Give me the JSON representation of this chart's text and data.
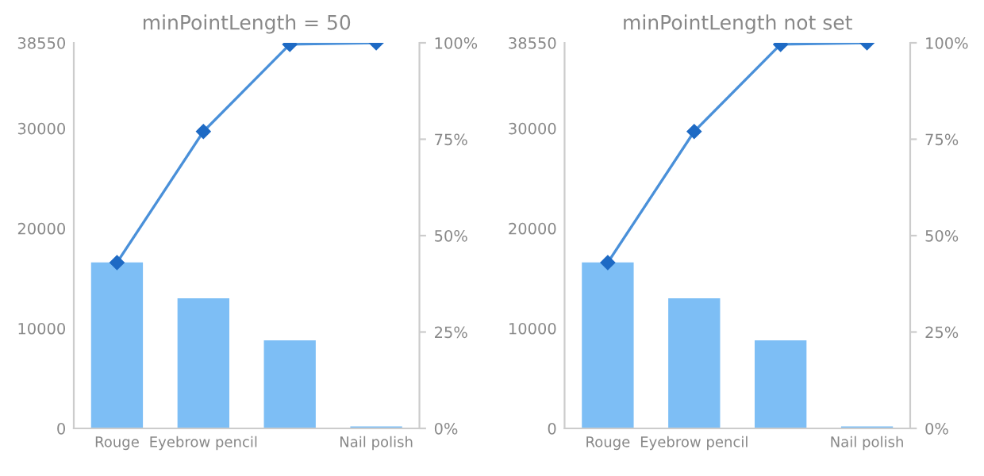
{
  "chart_data": [
    {
      "type": "bar",
      "title": "minPointLength = 50",
      "categories": [
        "Rouge",
        "Eyebrow pencil",
        null,
        "Nail polish"
      ],
      "series": [
        {
          "color": "#7dbef5",
          "values": [
            16600,
            13000,
            8800,
            200
          ]
        },
        {
          "type": "line",
          "axis": "y2",
          "color": "#4a90d9",
          "values": [
            43,
            77,
            99.6,
            100
          ],
          "marker": "diamond"
        }
      ],
      "ylim": [
        0,
        38550
      ],
      "yticks": [
        0,
        10000,
        20000,
        30000,
        38550
      ],
      "y2lim": [
        0,
        100
      ],
      "y2ticks": [
        {
          "value": 0,
          "label": "0%"
        },
        {
          "value": 25,
          "label": "25%"
        },
        {
          "value": 50,
          "label": "50%"
        },
        {
          "value": 75,
          "label": "75%"
        },
        {
          "value": 100,
          "label": "100%"
        }
      ],
      "grid": false,
      "legend": false
    },
    {
      "type": "bar",
      "title": "minPointLength not set",
      "categories": [
        "Rouge",
        "Eyebrow pencil",
        null,
        "Nail polish"
      ],
      "series": [
        {
          "color": "#7dbef5",
          "values": [
            16600,
            13000,
            8800,
            200
          ]
        },
        {
          "type": "line",
          "axis": "y2",
          "color": "#4a90d9",
          "values": [
            43,
            77,
            99.6,
            100
          ],
          "marker": "diamond"
        }
      ],
      "ylim": [
        0,
        38550
      ],
      "yticks": [
        0,
        10000,
        20000,
        30000,
        38550
      ],
      "y2lim": [
        0,
        100
      ],
      "y2ticks": [
        {
          "value": 0,
          "label": "0%"
        },
        {
          "value": 25,
          "label": "25%"
        },
        {
          "value": 50,
          "label": "50%"
        },
        {
          "value": 75,
          "label": "75%"
        },
        {
          "value": 100,
          "label": "100%"
        }
      ],
      "grid": false,
      "legend": false
    }
  ]
}
